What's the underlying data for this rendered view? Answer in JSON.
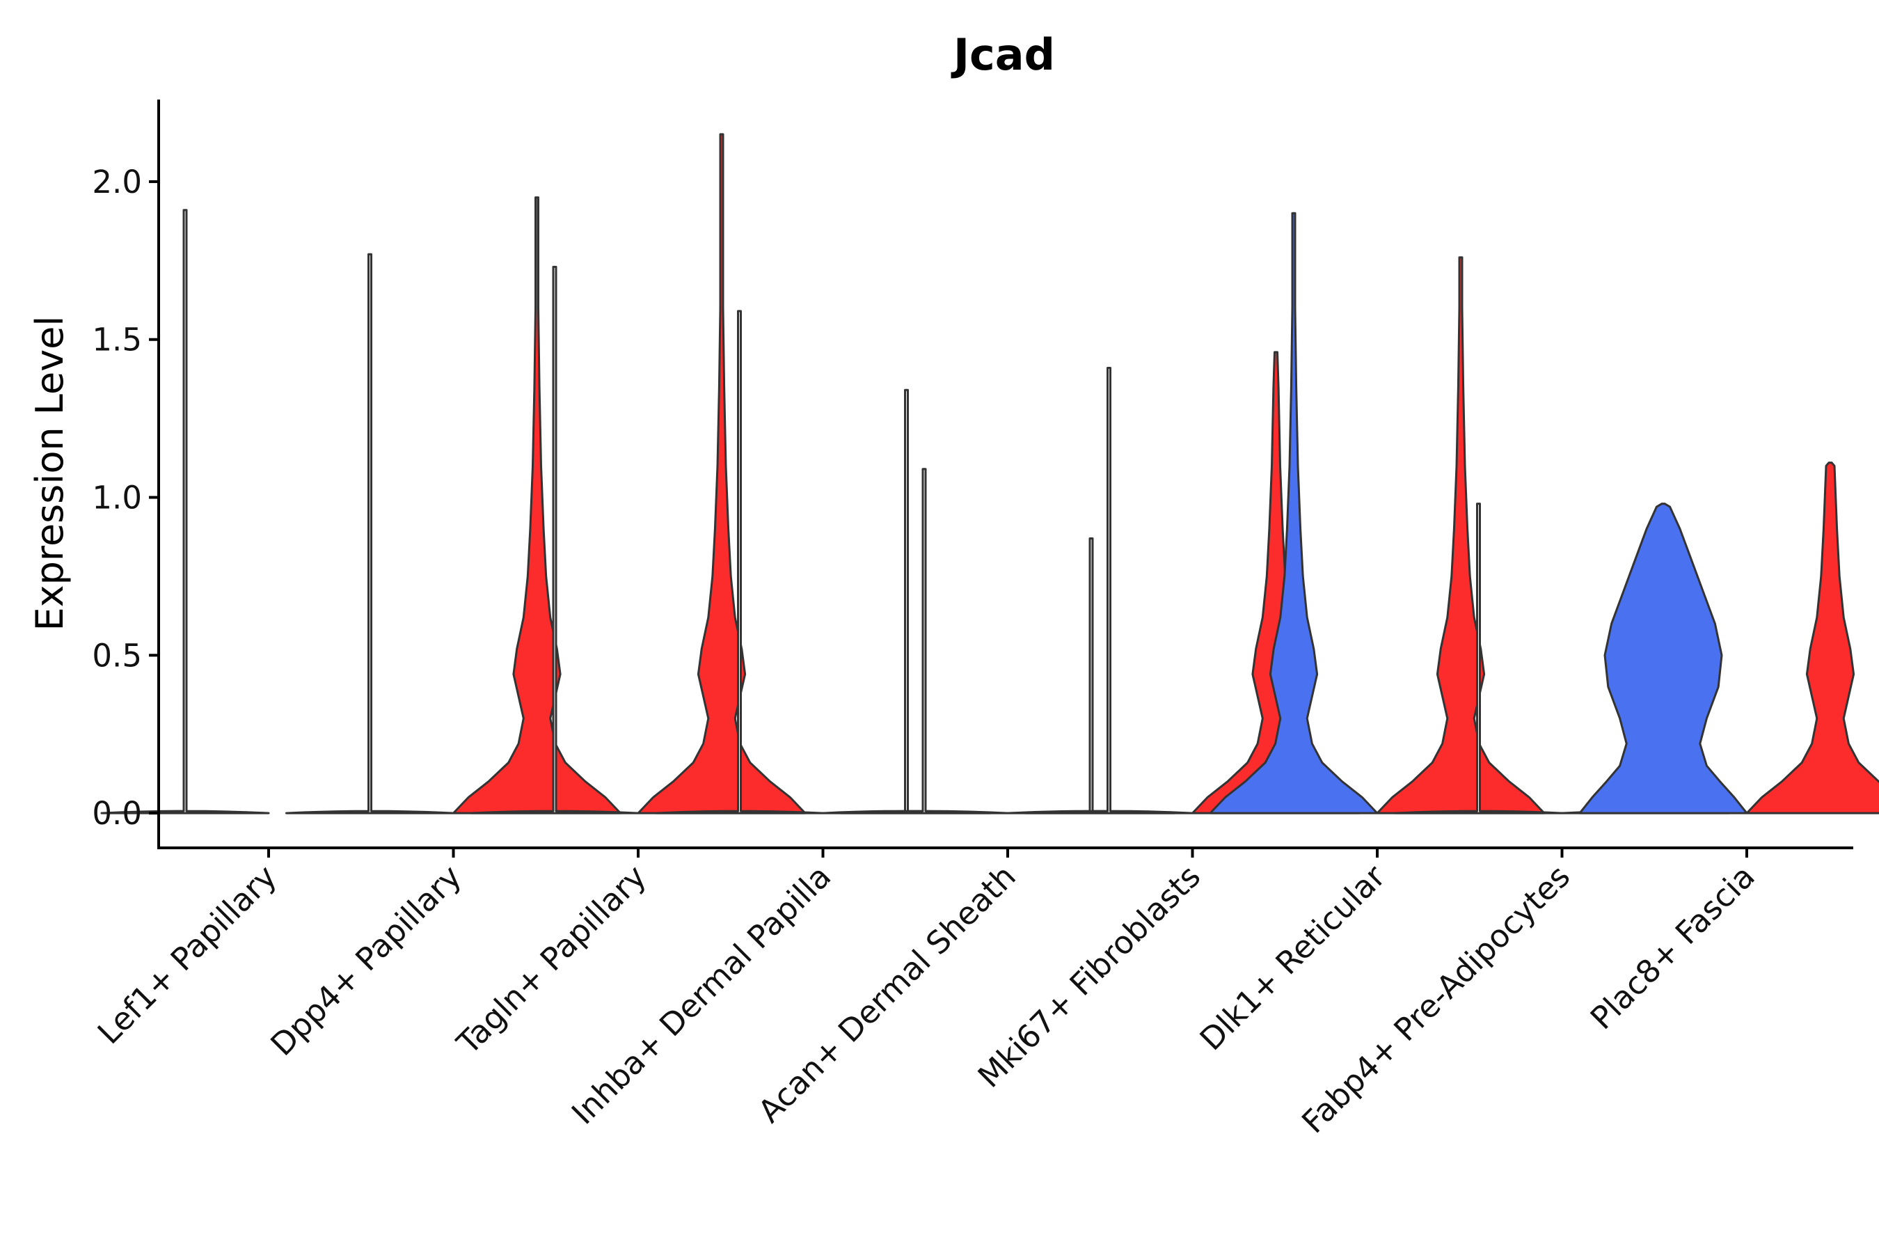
{
  "chart_data": {
    "type": "violin",
    "title": "Jcad",
    "xlabel": "",
    "ylabel": "Expression Level",
    "ylim": [
      -0.11,
      2.26
    ],
    "yticks": [
      0.0,
      0.5,
      1.0,
      1.5,
      2.0
    ],
    "ytick_labels": [
      "0.0",
      "0.5",
      "1.0",
      "1.5",
      "2.0"
    ],
    "categories": [
      "Lef1+ Papillary",
      "Dpp4+ Papillary",
      "Tagln+ Papillary",
      "Inhba+ Dermal Papilla",
      "Acan+ Dermal Sheath",
      "Mki67+ Fibroblasts",
      "Dlk1+ Reticular",
      "Fabp4+ Pre-Adipocytes",
      "Plac8+ Fascia"
    ],
    "series_colors": {
      "group1": "#ffffff",
      "group2": "#ffffff",
      "blue": "#4a72f0",
      "red": "#fc2c2c"
    },
    "violins": [
      {
        "category": "Lef1+ Papillary",
        "side": "left",
        "color": "#ffffff",
        "max": 1.91,
        "shape": "flat"
      },
      {
        "category": "Dpp4+ Papillary",
        "side": "left",
        "color": "#ffffff",
        "max": 1.77,
        "shape": "flat"
      },
      {
        "category": "Dpp4+ Papillary",
        "side": "right",
        "color": "#fc2c2c",
        "max": 1.95,
        "shape": "bimodal"
      },
      {
        "category": "Tagln+ Papillary",
        "side": "left",
        "color": "#ffffff",
        "max": 1.73,
        "shape": "flat"
      },
      {
        "category": "Tagln+ Papillary",
        "side": "right",
        "color": "#fc2c2c",
        "max": 2.15,
        "shape": "bimodal"
      },
      {
        "category": "Inhba+ Dermal Papilla",
        "side": "left",
        "color": "#ffffff",
        "max": 1.59,
        "shape": "flat"
      },
      {
        "category": "Inhba+ Dermal Papilla",
        "side": "right",
        "color": "#ffffff",
        "max": 1.34,
        "shape": "flat"
      },
      {
        "category": "Acan+ Dermal Sheath",
        "side": "left",
        "color": "#ffffff",
        "max": 1.09,
        "shape": "flat"
      },
      {
        "category": "Acan+ Dermal Sheath",
        "side": "right",
        "color": "#ffffff",
        "max": 0.87,
        "shape": "flat"
      },
      {
        "category": "Mki67+ Fibroblasts",
        "side": "left",
        "color": "#ffffff",
        "max": 1.41,
        "shape": "flat"
      },
      {
        "category": "Mki67+ Fibroblasts",
        "side": "right",
        "color": "#fc2c2c",
        "max": 1.46,
        "shape": "bimodal"
      },
      {
        "category": "Dlk1+ Reticular",
        "side": "left",
        "color": "#4a72f0",
        "max": 1.9,
        "shape": "bimodal"
      },
      {
        "category": "Dlk1+ Reticular",
        "side": "right",
        "color": "#fc2c2c",
        "max": 1.76,
        "shape": "bimodal"
      },
      {
        "category": "Fabp4+ Pre-Adipocytes",
        "side": "left",
        "color": "#ffffff",
        "max": 0.98,
        "shape": "flat"
      },
      {
        "category": "Fabp4+ Pre-Adipocytes",
        "side": "right",
        "color": "#ffffff",
        "max": 0.19,
        "shape": "flat"
      },
      {
        "category": "Plac8+ Fascia",
        "side": "left",
        "color": "#4a72f0",
        "max": 0.98,
        "shape": "wide"
      },
      {
        "category": "Plac8+ Fascia",
        "side": "right",
        "color": "#fc2c2c",
        "max": 1.11,
        "shape": "bimodal"
      }
    ]
  }
}
